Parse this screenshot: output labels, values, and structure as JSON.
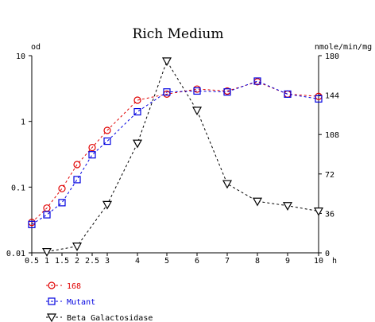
{
  "chart_data": {
    "type": "line",
    "title": "Rich Medium",
    "y_left_label": "od",
    "y_right_label": "nmole/min/mg",
    "x_unit_label": "h",
    "x_ticks": [
      0.5,
      1,
      1.5,
      2,
      2.5,
      3,
      4,
      5,
      6,
      7,
      8,
      9,
      10
    ],
    "x_tick_labels": [
      "0.5",
      "1",
      "1.5",
      "2",
      "2.5",
      "3",
      "4",
      "5",
      "6",
      "7",
      "8",
      "9",
      "10"
    ],
    "y_left_scale": "log",
    "y_left_ticks": [
      0.01,
      0.1,
      1,
      10
    ],
    "y_left_tick_labels": [
      "0.01",
      "0.1",
      "1",
      "10"
    ],
    "y_left_lim": [
      0.01,
      10
    ],
    "y_right_scale": "linear",
    "y_right_ticks": [
      0,
      36,
      72,
      108,
      144,
      180
    ],
    "y_right_tick_labels": [
      "0",
      "36",
      "72",
      "108",
      "144",
      "180"
    ],
    "y_right_lim": [
      0,
      180
    ],
    "legend_placement": "bottom-left",
    "series": [
      {
        "name": "168",
        "axis": "left",
        "marker": "circle",
        "color": "#e00000",
        "x": [
          0.5,
          1,
          1.5,
          2,
          2.5,
          3,
          4,
          5,
          6,
          7,
          8,
          9,
          10
        ],
        "y": [
          0.029,
          0.048,
          0.095,
          0.22,
          0.4,
          0.73,
          2.1,
          2.6,
          3.1,
          2.9,
          4.0,
          2.6,
          2.4
        ]
      },
      {
        "name": "Mutant",
        "axis": "left",
        "marker": "square",
        "color": "#0000e0",
        "x": [
          0.5,
          1,
          1.5,
          2,
          2.5,
          3,
          4,
          5,
          6,
          7,
          8,
          9,
          10
        ],
        "y": [
          0.027,
          0.038,
          0.058,
          0.13,
          0.31,
          0.5,
          1.4,
          2.8,
          2.9,
          2.8,
          4.1,
          2.6,
          2.2
        ]
      },
      {
        "name": "Beta Galactosidase",
        "axis": "right",
        "marker": "triangle-down",
        "color": "#000000",
        "x": [
          1,
          2,
          3,
          4,
          5,
          6,
          7,
          8,
          9,
          10
        ],
        "y": [
          1,
          6,
          44,
          100,
          175,
          130,
          63,
          47,
          43,
          38
        ]
      }
    ]
  }
}
